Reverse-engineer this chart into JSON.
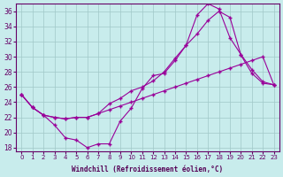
{
  "xlabel": "Windchill (Refroidissement éolien,°C)",
  "background_color": "#c8ecec",
  "line_color": "#990099",
  "xlim": [
    -0.5,
    23.5
  ],
  "ylim": [
    17.5,
    37.0
  ],
  "yticks": [
    18,
    20,
    22,
    24,
    26,
    28,
    30,
    32,
    34,
    36
  ],
  "xticks": [
    0,
    1,
    2,
    3,
    4,
    5,
    6,
    7,
    8,
    9,
    10,
    11,
    12,
    13,
    14,
    15,
    16,
    17,
    18,
    19,
    20,
    21,
    22,
    23
  ],
  "line1_x": [
    0,
    1,
    2,
    3,
    4,
    5,
    6,
    7,
    8,
    9,
    10,
    11,
    12,
    13,
    14,
    15,
    16,
    17,
    18,
    19,
    20,
    21,
    22,
    23
  ],
  "line1_y": [
    25.0,
    23.3,
    22.3,
    21.0,
    19.3,
    19.0,
    18.0,
    18.5,
    18.5,
    21.5,
    23.2,
    25.8,
    27.5,
    27.8,
    29.5,
    31.5,
    35.5,
    37.0,
    36.3,
    32.5,
    30.3,
    28.3,
    26.7,
    26.3
  ],
  "line2_x": [
    0,
    1,
    2,
    3,
    4,
    5,
    6,
    7,
    8,
    9,
    10,
    11,
    12,
    13,
    14,
    15,
    16,
    17,
    18,
    19,
    20,
    21,
    22,
    23
  ],
  "line2_y": [
    25.0,
    23.3,
    22.3,
    22.0,
    21.8,
    22.0,
    22.0,
    22.5,
    23.8,
    24.5,
    25.5,
    26.0,
    26.8,
    28.0,
    29.8,
    31.5,
    33.0,
    34.8,
    36.0,
    35.2,
    30.2,
    27.8,
    26.5,
    26.3
  ],
  "line3_x": [
    0,
    1,
    2,
    3,
    4,
    5,
    6,
    7,
    8,
    9,
    10,
    11,
    12,
    13,
    14,
    15,
    16,
    17,
    18,
    19,
    20,
    21,
    22,
    23
  ],
  "line3_y": [
    25.0,
    23.3,
    22.3,
    22.0,
    21.8,
    22.0,
    22.0,
    22.5,
    23.0,
    23.5,
    24.0,
    24.5,
    25.0,
    25.5,
    26.0,
    26.5,
    27.0,
    27.5,
    28.0,
    28.5,
    29.0,
    29.5,
    30.0,
    26.3
  ]
}
